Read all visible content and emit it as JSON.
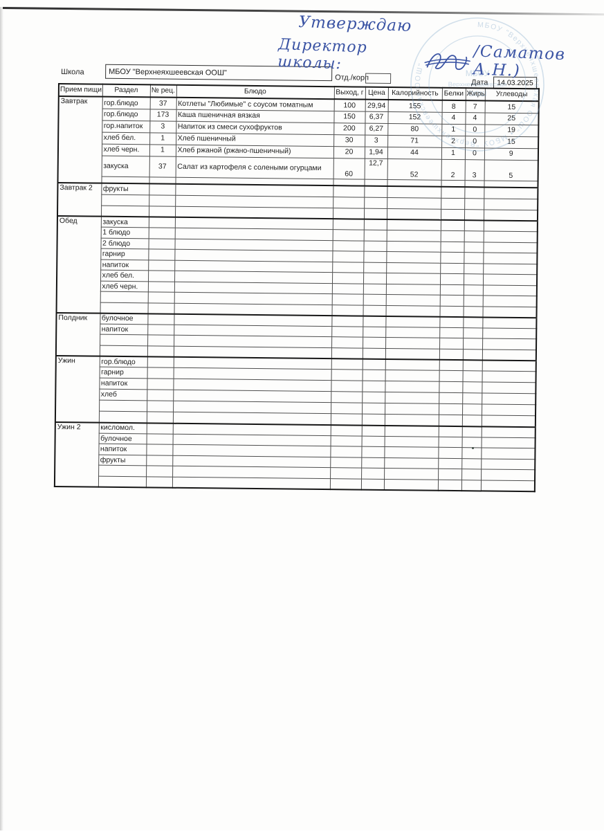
{
  "handwriting": {
    "line1": "Утверждаю",
    "line2": "Директор школы:",
    "line2_suffix": "/Саматов А.Н.)"
  },
  "stamp": {
    "ring": "МБОУ \"Верхнеяхшеевская ООШ\"  •  МБОУ \"Верхнеяхшеевская ООШ\"",
    "center_lines": [
      "МБОУ",
      "Верхнеяхшеевская",
      "ООШ"
    ]
  },
  "form": {
    "school_label": "Школа",
    "school_value": "МБОУ \"Верхнеяхшеевская ООШ\"",
    "dept_label": "Отд./корп",
    "dept_value": "",
    "date_label": "Дата",
    "date_value": "14.03.2025"
  },
  "table": {
    "headers": [
      "Прием пищи",
      "Раздел",
      "№ рец.",
      "Блюдо",
      "Выход, г",
      "Цена",
      "Калорийность",
      "Белки",
      "Жиры",
      "Углеводы"
    ],
    "sections": [
      {
        "meal": "Завтрак",
        "rows": [
          {
            "razdel": "гор.блюдо",
            "num": "37",
            "dish": "Котлеты \"Любимые\" с соусом томатным",
            "out": "100",
            "price": "29,94",
            "cal": "155",
            "prot": "8",
            "fat": "7",
            "carb": "15"
          },
          {
            "razdel": "гор.блюдо",
            "num": "173",
            "dish": "Каша пшеничная вязкая",
            "out": "150",
            "price": "6,37",
            "cal": "152",
            "prot": "4",
            "fat": "4",
            "carb": "25"
          },
          {
            "razdel": "гор.напиток",
            "num": "3",
            "dish": "Напиток из смеси сухофруктов",
            "out": "200",
            "price": "6,27",
            "cal": "80",
            "prot": "1",
            "fat": "0",
            "carb": "19"
          },
          {
            "razdel": "хлеб бел.",
            "num": "1",
            "dish": "Хлеб пшеничный",
            "out": "30",
            "price": "3",
            "cal": "71",
            "prot": "2",
            "fat": "0",
            "carb": "15"
          },
          {
            "razdel": "хлеб черн.",
            "num": "1",
            "dish": "Хлеб ржаной (ржано-пшеничный)",
            "out": "20",
            "price": "1,94",
            "cal": "44",
            "prot": "1",
            "fat": "0",
            "carb": "9"
          },
          {
            "razdel": "закуска",
            "num": "37",
            "dish": "Салат из картофеля с солеными огурцами",
            "out": "60",
            "price": "12,7",
            "cal": "52",
            "prot": "2",
            "fat": "3",
            "carb": "5",
            "tall": true
          },
          {
            "short": true
          }
        ]
      },
      {
        "meal": "Завтрак 2",
        "rows": [
          {
            "razdel": "фрукты"
          },
          {},
          {}
        ]
      },
      {
        "meal": "Обед",
        "rows": [
          {
            "razdel": "закуска"
          },
          {
            "razdel": "1 блюдо"
          },
          {
            "razdel": "2 блюдо"
          },
          {
            "razdel": "гарнир"
          },
          {
            "razdel": "напиток"
          },
          {
            "razdel": "хлеб бел."
          },
          {
            "razdel": "хлеб черн."
          },
          {},
          {}
        ]
      },
      {
        "meal": "Полдник",
        "rows": [
          {
            "razdel": "булочное"
          },
          {
            "razdel": "напиток"
          },
          {},
          {}
        ]
      },
      {
        "meal": "Ужин",
        "rows": [
          {
            "razdel": "гор.блюдо"
          },
          {
            "razdel": "гарнир"
          },
          {
            "razdel": "напиток"
          },
          {
            "razdel": "хлеб"
          },
          {},
          {}
        ]
      },
      {
        "meal": "Ужин 2",
        "rows": [
          {
            "razdel": "кисломол."
          },
          {
            "razdel": "булочное"
          },
          {
            "razdel": "напиток"
          },
          {
            "razdel": "фрукты"
          },
          {},
          {}
        ]
      }
    ]
  },
  "colors": {
    "handwriting_ink": "#3b54a4",
    "stamp_ink": "#6f9cc4",
    "table_line": "#3c3c3c",
    "text": "#1d1d1d",
    "paper": "#fdfdfc"
  }
}
